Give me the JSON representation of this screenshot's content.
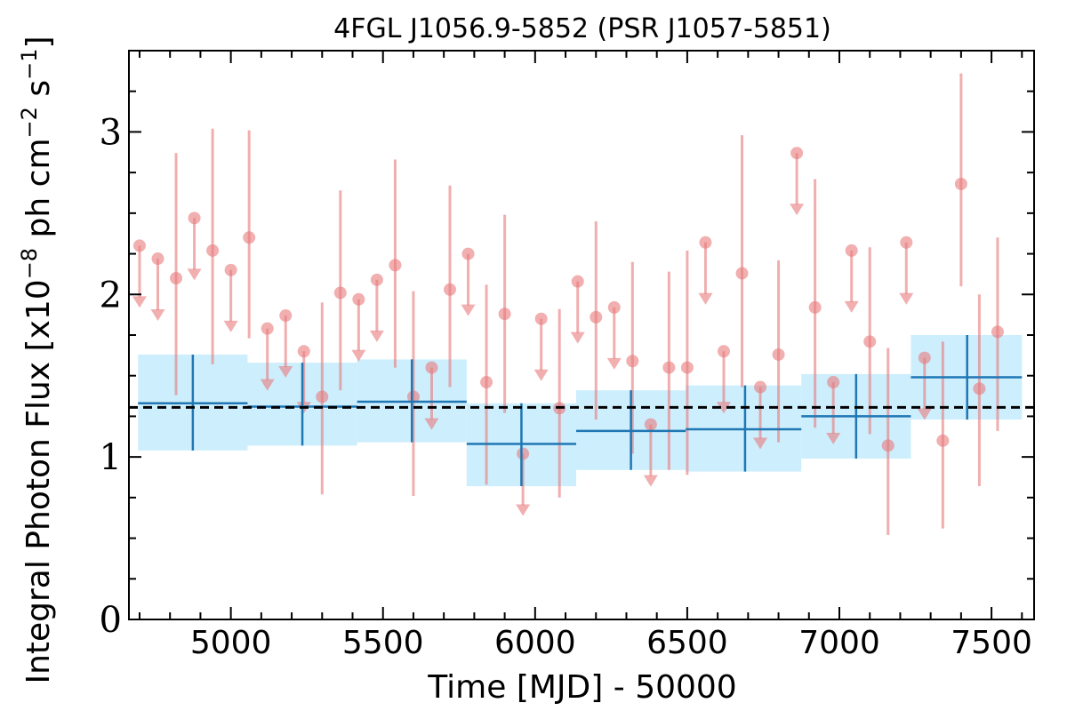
{
  "chart_data": {
    "type": "scatter",
    "title": "4FGL J1056.9-5852 (PSR J1057-5851)",
    "xlabel": "Time [MJD] - 50000",
    "ylabel": "Integral Photon Flux [x10",
    "ylabel_exp1": "−8",
    "ylabel_mid": " ph cm",
    "ylabel_exp2": "−2",
    "ylabel_mid2": " s",
    "ylabel_exp3": "−1",
    "ylabel_end": "]",
    "xlim": [
      4665,
      7640
    ],
    "ylim": [
      0,
      3.5
    ],
    "x_ticks": [
      5000,
      5500,
      6000,
      6500,
      7000,
      7500
    ],
    "x_tick_labels": [
      "5000",
      "5500",
      "6000",
      "6500",
      "7000",
      "7500"
    ],
    "y_ticks": [
      0,
      1,
      2,
      3
    ],
    "y_tick_labels": [
      "0",
      "1",
      "2",
      "3"
    ],
    "mean_flux": 1.305,
    "colors": {
      "points": "#e8797b",
      "bins": "#1f77b4",
      "band": "#cdeefc",
      "mean": "#000000"
    },
    "long_bins": [
      {
        "x": 4875,
        "xlo": 4695,
        "xhi": 5055,
        "y": 1.33,
        "ylo": 1.04,
        "yhi": 1.63
      },
      {
        "x": 5235,
        "xlo": 5055,
        "xhi": 5415,
        "y": 1.31,
        "ylo": 1.07,
        "yhi": 1.58
      },
      {
        "x": 5595,
        "xlo": 5415,
        "xhi": 5775,
        "y": 1.34,
        "ylo": 1.09,
        "yhi": 1.6
      },
      {
        "x": 5955,
        "xlo": 5775,
        "xhi": 6135,
        "y": 1.08,
        "ylo": 0.82,
        "yhi": 1.33
      },
      {
        "x": 6315,
        "xlo": 6135,
        "xhi": 6495,
        "y": 1.16,
        "ylo": 0.92,
        "yhi": 1.41
      },
      {
        "x": 6690,
        "xlo": 6495,
        "xhi": 6875,
        "y": 1.17,
        "ylo": 0.91,
        "yhi": 1.44
      },
      {
        "x": 7055,
        "xlo": 6875,
        "xhi": 7235,
        "y": 1.25,
        "ylo": 0.99,
        "yhi": 1.51
      },
      {
        "x": 7420,
        "xlo": 7235,
        "xhi": 7600,
        "y": 1.49,
        "ylo": 1.23,
        "yhi": 1.75
      }
    ],
    "points": [
      {
        "x": 4700,
        "y": 2.3,
        "ul": true
      },
      {
        "x": 4760,
        "y": 2.22,
        "ul": true
      },
      {
        "x": 4820,
        "y": 2.1,
        "ylo": 1.38,
        "yhi": 2.87
      },
      {
        "x": 4880,
        "y": 2.47,
        "ul": true
      },
      {
        "x": 4940,
        "y": 2.27,
        "ylo": 1.57,
        "yhi": 3.02
      },
      {
        "x": 5000,
        "y": 2.15,
        "ul": true
      },
      {
        "x": 5060,
        "y": 2.35,
        "ylo": 1.73,
        "yhi": 3.01
      },
      {
        "x": 5120,
        "y": 1.79,
        "ul": true
      },
      {
        "x": 5180,
        "y": 1.87,
        "ul": true
      },
      {
        "x": 5240,
        "y": 1.65,
        "ul": true
      },
      {
        "x": 5300,
        "y": 1.37,
        "ylo": 0.77,
        "yhi": 1.95
      },
      {
        "x": 5360,
        "y": 2.01,
        "ylo": 1.41,
        "yhi": 2.64
      },
      {
        "x": 5420,
        "y": 1.97,
        "ul": true
      },
      {
        "x": 5480,
        "y": 2.09,
        "ul": true
      },
      {
        "x": 5540,
        "y": 2.18,
        "ylo": 1.55,
        "yhi": 2.83
      },
      {
        "x": 5600,
        "y": 1.37,
        "ylo": 0.76,
        "yhi": 2.02
      },
      {
        "x": 5660,
        "y": 1.55,
        "ul": true
      },
      {
        "x": 5720,
        "y": 2.03,
        "ylo": 1.43,
        "yhi": 2.67
      },
      {
        "x": 5780,
        "y": 2.25,
        "ul": true
      },
      {
        "x": 5840,
        "y": 1.46,
        "ylo": 0.83,
        "yhi": 2.06
      },
      {
        "x": 5900,
        "y": 1.88,
        "ylo": 1.27,
        "yhi": 2.49
      },
      {
        "x": 5960,
        "y": 1.02,
        "ul": true
      },
      {
        "x": 6020,
        "y": 1.85,
        "ul": true
      },
      {
        "x": 6080,
        "y": 1.3,
        "ylo": 0.75,
        "yhi": 1.91
      },
      {
        "x": 6140,
        "y": 2.08,
        "ul": true
      },
      {
        "x": 6200,
        "y": 1.86,
        "ylo": 1.23,
        "yhi": 2.45
      },
      {
        "x": 6260,
        "y": 1.92,
        "ul": true
      },
      {
        "x": 6320,
        "y": 1.59,
        "ylo": 1.02,
        "yhi": 2.2
      },
      {
        "x": 6380,
        "y": 1.2,
        "ul": true
      },
      {
        "x": 6440,
        "y": 1.55,
        "ylo": 0.92,
        "yhi": 2.14
      },
      {
        "x": 6500,
        "y": 1.55,
        "ylo": 0.89,
        "yhi": 2.27
      },
      {
        "x": 6560,
        "y": 2.32,
        "ul": true
      },
      {
        "x": 6620,
        "y": 1.65,
        "ul": true
      },
      {
        "x": 6680,
        "y": 2.13,
        "ylo": 1.43,
        "yhi": 2.98
      },
      {
        "x": 6740,
        "y": 1.43,
        "ul": true
      },
      {
        "x": 6800,
        "y": 1.63,
        "ylo": 1.09,
        "yhi": 2.21
      },
      {
        "x": 6860,
        "y": 2.87,
        "ul": true
      },
      {
        "x": 6920,
        "y": 1.92,
        "ylo": 1.18,
        "yhi": 2.71
      },
      {
        "x": 6980,
        "y": 1.46,
        "ul": true
      },
      {
        "x": 7040,
        "y": 2.27,
        "ul": true
      },
      {
        "x": 7100,
        "y": 1.71,
        "ylo": 1.14,
        "yhi": 2.29
      },
      {
        "x": 7160,
        "y": 1.07,
        "ylo": 0.52,
        "yhi": 1.67
      },
      {
        "x": 7220,
        "y": 2.32,
        "ul": true
      },
      {
        "x": 7280,
        "y": 1.61,
        "ul": true
      },
      {
        "x": 7340,
        "y": 1.1,
        "ylo": 0.56,
        "yhi": 1.71
      },
      {
        "x": 7400,
        "y": 2.68,
        "ylo": 2.05,
        "yhi": 3.36
      },
      {
        "x": 7460,
        "y": 1.42,
        "ylo": 0.82,
        "yhi": 2.0
      },
      {
        "x": 7520,
        "y": 1.77,
        "ylo": 1.16,
        "yhi": 2.35
      }
    ]
  }
}
